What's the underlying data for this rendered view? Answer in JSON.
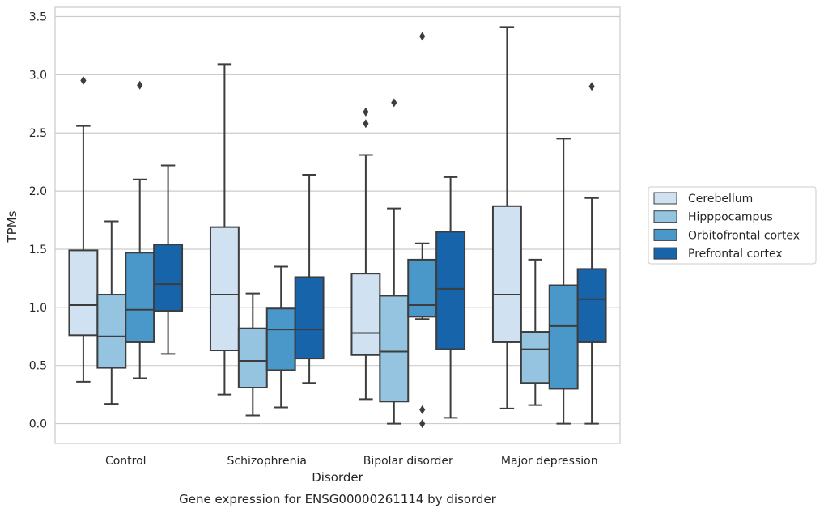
{
  "caption": "Gene expression for ENSG00000261114 by disorder",
  "chart_data": {
    "type": "boxplot",
    "title": "",
    "xlabel": "Disorder",
    "ylabel": "TPMs",
    "ylim": [
      -0.17,
      3.58
    ],
    "yticks": [
      "0.0",
      "0.5",
      "1.0",
      "1.5",
      "2.0",
      "2.5",
      "3.0",
      "3.5"
    ],
    "grid": "horizontal",
    "legend_position": "right",
    "categories": [
      "Control",
      "Schizophrenia",
      "Bipolar disorder",
      "Major depression"
    ],
    "series": [
      {
        "name": "Cerebellum",
        "color": "#d0e1f2",
        "boxes": [
          {
            "whislo": 0.36,
            "q1": 0.76,
            "med": 1.02,
            "q3": 1.49,
            "whishi": 2.56,
            "fliers": [
              2.95
            ]
          },
          {
            "whislo": 0.25,
            "q1": 0.63,
            "med": 1.11,
            "q3": 1.69,
            "whishi": 3.09,
            "fliers": []
          },
          {
            "whislo": 0.21,
            "q1": 0.59,
            "med": 0.78,
            "q3": 1.29,
            "whishi": 2.31,
            "fliers": [
              2.58,
              2.68
            ]
          },
          {
            "whislo": 0.13,
            "q1": 0.7,
            "med": 1.11,
            "q3": 1.87,
            "whishi": 3.41,
            "fliers": []
          }
        ]
      },
      {
        "name": "Hipppocampus",
        "color": "#94c4df",
        "boxes": [
          {
            "whislo": 0.17,
            "q1": 0.48,
            "med": 0.75,
            "q3": 1.11,
            "whishi": 1.74,
            "fliers": []
          },
          {
            "whislo": 0.07,
            "q1": 0.31,
            "med": 0.54,
            "q3": 0.82,
            "whishi": 1.12,
            "fliers": []
          },
          {
            "whislo": 0.0,
            "q1": 0.19,
            "med": 0.62,
            "q3": 1.1,
            "whishi": 1.85,
            "fliers": [
              2.76
            ]
          },
          {
            "whislo": 0.16,
            "q1": 0.35,
            "med": 0.64,
            "q3": 0.79,
            "whishi": 1.41,
            "fliers": []
          }
        ]
      },
      {
        "name": "Orbitofrontal cortex",
        "color": "#4a98c9",
        "boxes": [
          {
            "whislo": 0.39,
            "q1": 0.7,
            "med": 0.98,
            "q3": 1.47,
            "whishi": 2.1,
            "fliers": [
              2.91
            ]
          },
          {
            "whislo": 0.14,
            "q1": 0.46,
            "med": 0.81,
            "q3": 0.99,
            "whishi": 1.35,
            "fliers": []
          },
          {
            "whislo": 0.9,
            "q1": 0.92,
            "med": 1.02,
            "q3": 1.41,
            "whishi": 1.55,
            "fliers": [
              0.12,
              0.0,
              3.33
            ]
          },
          {
            "whislo": 0.0,
            "q1": 0.3,
            "med": 0.84,
            "q3": 1.19,
            "whishi": 2.45,
            "fliers": []
          }
        ]
      },
      {
        "name": "Prefrontal cortex",
        "color": "#1764ab",
        "boxes": [
          {
            "whislo": 0.6,
            "q1": 0.97,
            "med": 1.2,
            "q3": 1.54,
            "whishi": 2.22,
            "fliers": []
          },
          {
            "whislo": 0.35,
            "q1": 0.56,
            "med": 0.81,
            "q3": 1.26,
            "whishi": 2.14,
            "fliers": []
          },
          {
            "whislo": 0.05,
            "q1": 0.64,
            "med": 1.16,
            "q3": 1.65,
            "whishi": 2.12,
            "fliers": []
          },
          {
            "whislo": 0.0,
            "q1": 0.7,
            "med": 1.07,
            "q3": 1.33,
            "whishi": 1.94,
            "fliers": [
              2.9
            ]
          }
        ]
      }
    ]
  }
}
